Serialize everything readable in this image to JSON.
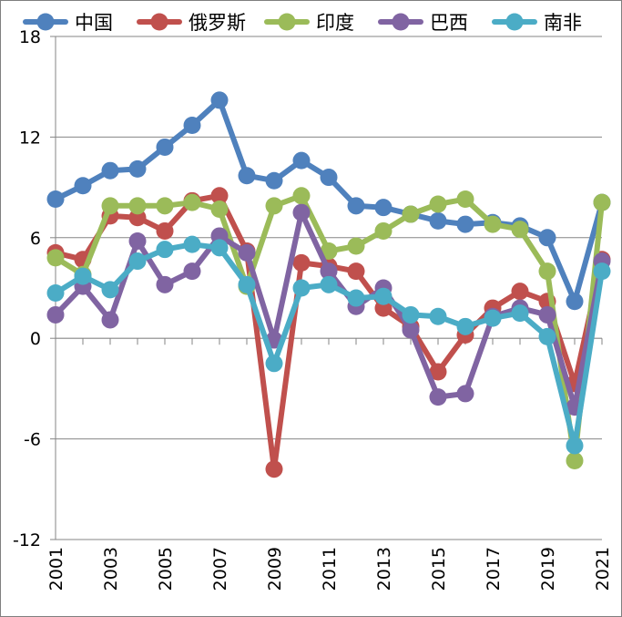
{
  "chart_data": {
    "type": "line",
    "title": "",
    "xlabel": "",
    "ylabel": "",
    "ylim": [
      -12,
      18
    ],
    "yticks": [
      -12,
      -6,
      0,
      6,
      12,
      18
    ],
    "ytick_labels": [
      "-12",
      "-6",
      "0",
      "6",
      "12",
      "18"
    ],
    "x": [
      2001,
      2002,
      2003,
      2004,
      2005,
      2006,
      2007,
      2008,
      2009,
      2010,
      2011,
      2012,
      2013,
      2014,
      2015,
      2016,
      2017,
      2018,
      2019,
      2020,
      2021
    ],
    "xtick_labels": [
      "2001",
      "2003",
      "2005",
      "2007",
      "2009",
      "2011",
      "2013",
      "2015",
      "2017",
      "2019",
      "2021"
    ],
    "grid": "horizontal",
    "legend_position": "top",
    "series": [
      {
        "name": "中国",
        "color": "#4F81BD",
        "values": [
          8.3,
          9.1,
          10.0,
          10.1,
          11.4,
          12.7,
          14.2,
          9.7,
          9.4,
          10.6,
          9.6,
          7.9,
          7.8,
          7.4,
          7.0,
          6.8,
          6.9,
          6.7,
          6.0,
          2.2,
          8.1
        ]
      },
      {
        "name": "俄罗斯",
        "color": "#C0504D",
        "values": [
          5.1,
          4.7,
          7.3,
          7.2,
          6.4,
          8.2,
          8.5,
          5.2,
          -7.8,
          4.5,
          4.3,
          4.0,
          1.8,
          0.7,
          -2.0,
          0.2,
          1.8,
          2.8,
          2.2,
          -2.7,
          4.7
        ]
      },
      {
        "name": "印度",
        "color": "#9BBB59",
        "values": [
          4.8,
          3.8,
          7.9,
          7.9,
          7.9,
          8.1,
          7.7,
          3.1,
          7.9,
          8.5,
          5.2,
          5.5,
          6.4,
          7.4,
          8.0,
          8.3,
          6.8,
          6.5,
          4.0,
          -7.3,
          8.1
        ]
      },
      {
        "name": "巴西",
        "color": "#8064A2",
        "values": [
          1.4,
          3.1,
          1.1,
          5.8,
          3.2,
          4.0,
          6.1,
          5.1,
          -0.1,
          7.5,
          4.0,
          1.9,
          3.0,
          0.5,
          -3.5,
          -3.3,
          1.3,
          1.8,
          1.4,
          -4.1,
          4.6
        ]
      },
      {
        "name": "南非",
        "color": "#4BACC6",
        "values": [
          2.7,
          3.7,
          2.9,
          4.6,
          5.3,
          5.6,
          5.4,
          3.2,
          -1.5,
          3.0,
          3.2,
          2.4,
          2.5,
          1.4,
          1.3,
          0.7,
          1.2,
          1.5,
          0.1,
          -6.4,
          4.0
        ]
      }
    ]
  }
}
